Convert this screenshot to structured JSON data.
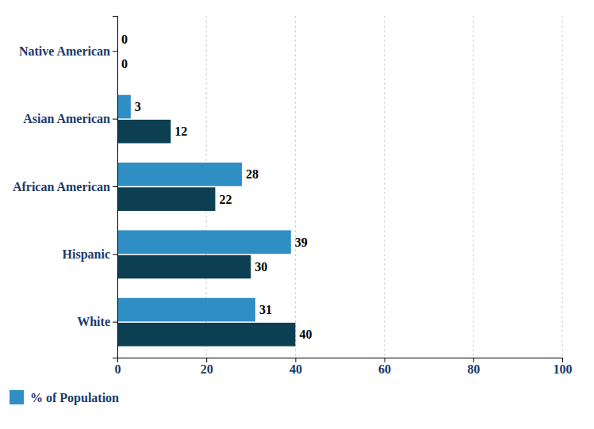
{
  "chart_data": {
    "type": "bar",
    "orientation": "horizontal",
    "categories": [
      "Native American",
      "Asian American",
      "African American",
      "Hispanic",
      "White"
    ],
    "series": [
      {
        "name": "% of Population",
        "color": "#2f8fc4",
        "values": [
          0,
          3,
          28,
          39,
          31
        ]
      },
      {
        "color": "#0d3f52",
        "values": [
          0,
          12,
          22,
          30,
          40
        ]
      }
    ],
    "xlim": [
      0,
      100
    ],
    "xticks": [
      0,
      20,
      40,
      60,
      80,
      100
    ],
    "grid": true,
    "data_labels": true,
    "legend": "bottom-left"
  }
}
